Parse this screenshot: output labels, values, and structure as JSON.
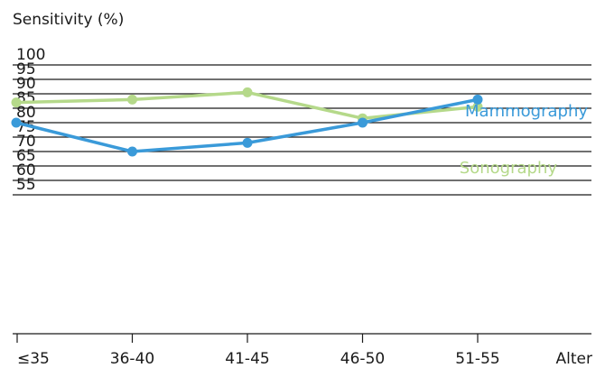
{
  "chart_data": {
    "type": "line",
    "ylabel": "Sensitivity (%)",
    "xlabel": "Alter",
    "categories": [
      "≤35",
      "36-40",
      "41-45",
      "46-50",
      "51-55"
    ],
    "yticks": [
      55,
      60,
      65,
      70,
      75,
      80,
      85,
      90,
      95,
      100
    ],
    "ylim": [
      50,
      100
    ],
    "grid": true,
    "series": [
      {
        "name": "Mammography",
        "color": "#3a9ad9",
        "values": [
          80,
          70,
          73,
          80,
          88
        ]
      },
      {
        "name": "Sonography",
        "color": "#b5d98a",
        "values": [
          87,
          88,
          90.5,
          81.5,
          85.5
        ]
      }
    ]
  }
}
